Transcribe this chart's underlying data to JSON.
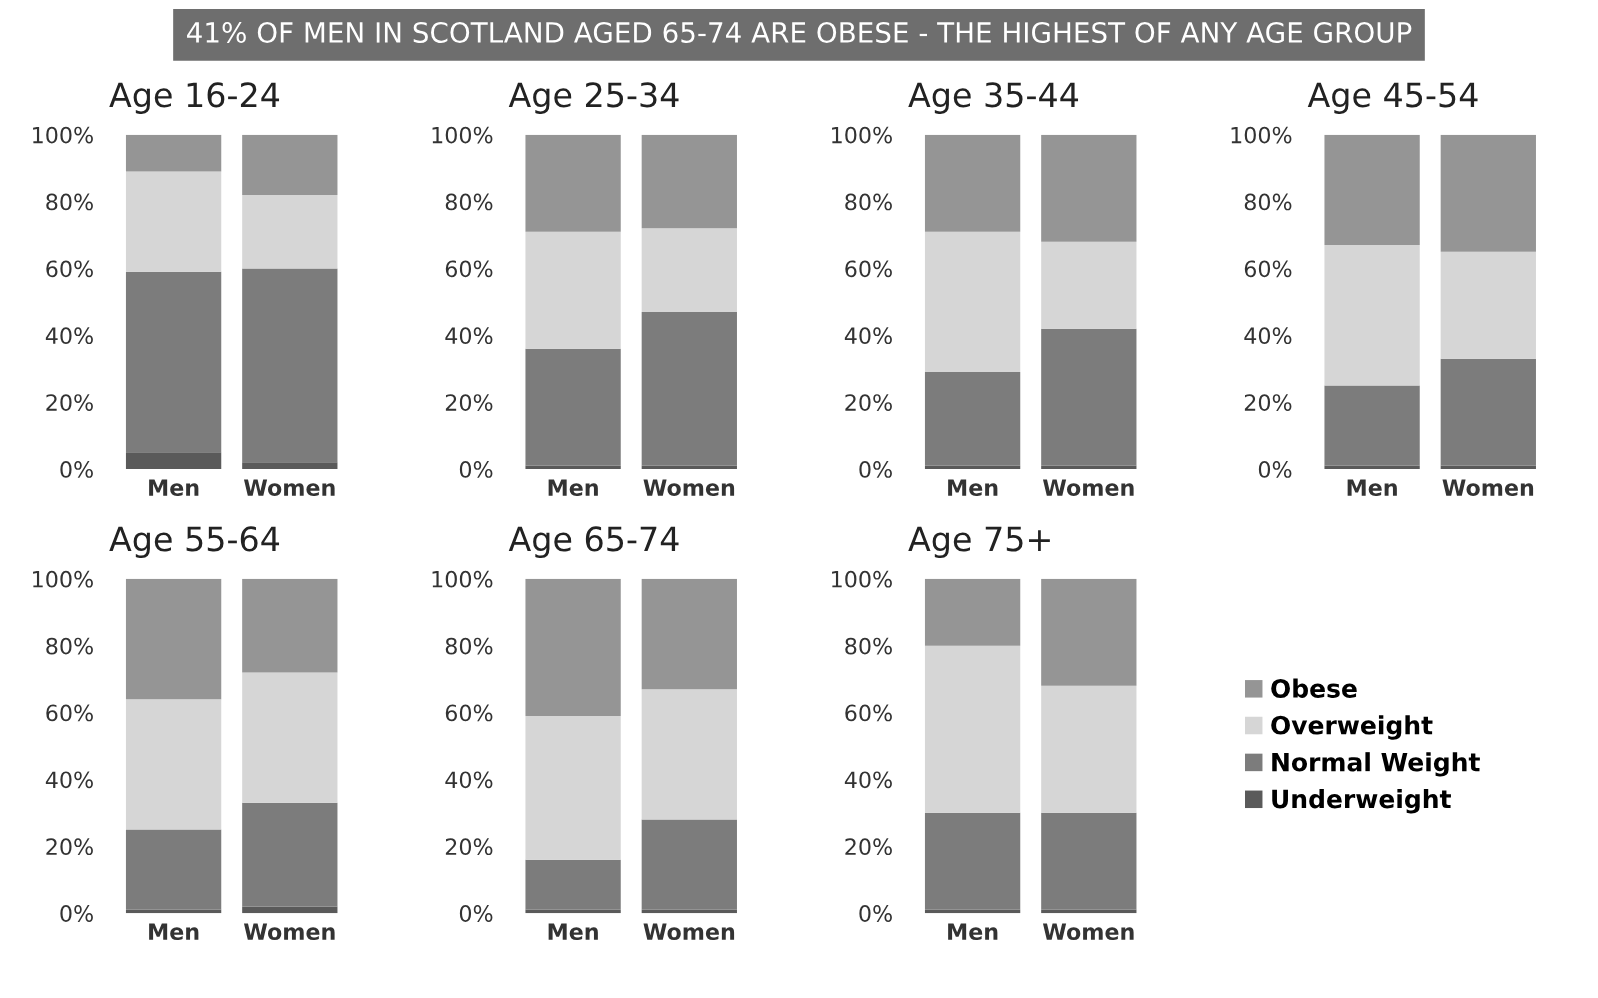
{
  "chart_data": [
    {
      "type": "bar",
      "stacked": true,
      "title": "Age 16-24",
      "annotations": [
        "41% OF MEN IN SCOTLAND AGED 65-74 ARE OBESE - THE HIGHEST OF ANY AGE GROUP"
      ],
      "categories": [
        "Men",
        "Women"
      ],
      "ylim": [
        0,
        100
      ],
      "yticks": [
        {
          "value": 0,
          "label": "0%"
        },
        {
          "value": 20,
          "label": "20%"
        },
        {
          "value": 40,
          "label": "40%"
        },
        {
          "value": 60,
          "label": "60%"
        },
        {
          "value": 80,
          "label": "80%"
        },
        {
          "value": 100,
          "label": "100%"
        }
      ],
      "grid": false,
      "legend": false,
      "series": [
        {
          "color": "#5a5a5a",
          "values": [
            5,
            2
          ]
        },
        {
          "color": "#7c7c7c",
          "values": [
            54,
            58
          ]
        },
        {
          "color": "#d6d6d6",
          "values": [
            30,
            22
          ]
        },
        {
          "color": "#959595",
          "values": [
            11,
            18
          ]
        }
      ]
    },
    {
      "type": "bar",
      "stacked": true,
      "title": "Age 25-34",
      "categories": [
        "Men",
        "Women"
      ],
      "ylim": [
        0,
        100
      ],
      "yticks": [
        {
          "value": 0,
          "label": "0%"
        },
        {
          "value": 20,
          "label": "20%"
        },
        {
          "value": 40,
          "label": "40%"
        },
        {
          "value": 60,
          "label": "60%"
        },
        {
          "value": 80,
          "label": "80%"
        },
        {
          "value": 100,
          "label": "100%"
        }
      ],
      "grid": false,
      "legend": false,
      "series": [
        {
          "color": "#5a5a5a",
          "values": [
            1,
            1
          ]
        },
        {
          "color": "#7c7c7c",
          "values": [
            35,
            46
          ]
        },
        {
          "color": "#d6d6d6",
          "values": [
            35,
            25
          ]
        },
        {
          "color": "#959595",
          "values": [
            29,
            28
          ]
        }
      ]
    },
    {
      "type": "bar",
      "stacked": true,
      "title": "Age 35-44",
      "categories": [
        "Men",
        "Women"
      ],
      "ylim": [
        0,
        100
      ],
      "yticks": [
        {
          "value": 0,
          "label": "0%"
        },
        {
          "value": 20,
          "label": "20%"
        },
        {
          "value": 40,
          "label": "40%"
        },
        {
          "value": 60,
          "label": "60%"
        },
        {
          "value": 80,
          "label": "80%"
        },
        {
          "value": 100,
          "label": "100%"
        }
      ],
      "grid": false,
      "legend": false,
      "series": [
        {
          "color": "#5a5a5a",
          "values": [
            1,
            1
          ]
        },
        {
          "color": "#7c7c7c",
          "values": [
            28,
            41
          ]
        },
        {
          "color": "#d6d6d6",
          "values": [
            42,
            26
          ]
        },
        {
          "color": "#959595",
          "values": [
            29,
            32
          ]
        }
      ]
    },
    {
      "type": "bar",
      "stacked": true,
      "title": "Age 45-54",
      "categories": [
        "Men",
        "Women"
      ],
      "ylim": [
        0,
        100
      ],
      "yticks": [
        {
          "value": 0,
          "label": "0%"
        },
        {
          "value": 20,
          "label": "20%"
        },
        {
          "value": 40,
          "label": "40%"
        },
        {
          "value": 60,
          "label": "60%"
        },
        {
          "value": 80,
          "label": "80%"
        },
        {
          "value": 100,
          "label": "100%"
        }
      ],
      "grid": false,
      "legend": false,
      "series": [
        {
          "color": "#5a5a5a",
          "values": [
            1,
            1
          ]
        },
        {
          "color": "#7c7c7c",
          "values": [
            24,
            32
          ]
        },
        {
          "color": "#d6d6d6",
          "values": [
            42,
            32
          ]
        },
        {
          "color": "#959595",
          "values": [
            33,
            35
          ]
        }
      ]
    },
    {
      "type": "bar",
      "stacked": true,
      "title": "Age 55-64",
      "categories": [
        "Men",
        "Women"
      ],
      "ylim": [
        0,
        100
      ],
      "yticks": [
        {
          "value": 0,
          "label": "0%"
        },
        {
          "value": 20,
          "label": "20%"
        },
        {
          "value": 40,
          "label": "40%"
        },
        {
          "value": 60,
          "label": "60%"
        },
        {
          "value": 80,
          "label": "80%"
        },
        {
          "value": 100,
          "label": "100%"
        }
      ],
      "grid": false,
      "legend": false,
      "series": [
        {
          "color": "#5a5a5a",
          "values": [
            1,
            2
          ]
        },
        {
          "color": "#7c7c7c",
          "values": [
            24,
            31
          ]
        },
        {
          "color": "#d6d6d6",
          "values": [
            39,
            39
          ]
        },
        {
          "color": "#959595",
          "values": [
            36,
            28
          ]
        }
      ]
    },
    {
      "type": "bar",
      "stacked": true,
      "title": "Age 65-74",
      "categories": [
        "Men",
        "Women"
      ],
      "ylim": [
        0,
        100
      ],
      "yticks": [
        {
          "value": 0,
          "label": "0%"
        },
        {
          "value": 20,
          "label": "20%"
        },
        {
          "value": 40,
          "label": "40%"
        },
        {
          "value": 60,
          "label": "60%"
        },
        {
          "value": 80,
          "label": "80%"
        },
        {
          "value": 100,
          "label": "100%"
        }
      ],
      "grid": false,
      "legend": false,
      "series": [
        {
          "color": "#5a5a5a",
          "values": [
            1,
            1
          ]
        },
        {
          "color": "#7c7c7c",
          "values": [
            15,
            27
          ]
        },
        {
          "color": "#d6d6d6",
          "values": [
            43,
            39
          ]
        },
        {
          "color": "#959595",
          "values": [
            41,
            33
          ]
        }
      ]
    },
    {
      "type": "bar",
      "stacked": true,
      "title": "Age 75+",
      "categories": [
        "Men",
        "Women"
      ],
      "ylim": [
        0,
        100
      ],
      "yticks": [
        {
          "value": 0,
          "label": "0%"
        },
        {
          "value": 20,
          "label": "20%"
        },
        {
          "value": 40,
          "label": "40%"
        },
        {
          "value": 60,
          "label": "60%"
        },
        {
          "value": 80,
          "label": "80%"
        },
        {
          "value": 100,
          "label": "100%"
        }
      ],
      "grid": false,
      "legend": "right",
      "series": [
        {
          "name": "Underweight",
          "color": "#5a5a5a",
          "values": [
            1,
            1
          ]
        },
        {
          "name": "Normal Weight",
          "color": "#7c7c7c",
          "values": [
            29,
            29
          ]
        },
        {
          "name": "Overweight",
          "color": "#d6d6d6",
          "values": [
            50,
            38
          ]
        },
        {
          "name": "Obese",
          "color": "#959595",
          "values": [
            20,
            32
          ]
        }
      ]
    }
  ]
}
